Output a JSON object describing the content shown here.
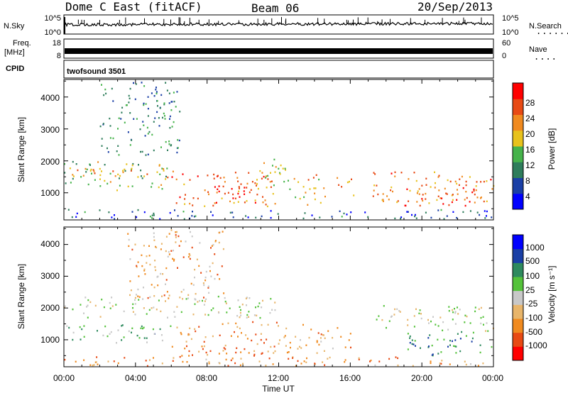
{
  "header": {
    "title": "Dome C East (fitACF)",
    "beam": "Beam 06",
    "date": "20/Sep/2013"
  },
  "meta_panels": {
    "nsky_label": "N.Sky",
    "nsky_ticks": [
      "10^5",
      "10^0"
    ],
    "nsearch_label": "N.Search",
    "nsearch_ticks": [
      "10^5",
      "10^0"
    ],
    "nsearch_marker": ".......",
    "freq_label_1": "Freq.",
    "freq_label_2": "[MHz]",
    "freq_ticks": [
      "18",
      "8"
    ],
    "nave_label": "Nave",
    "nave_ticks": [
      "60",
      "0"
    ],
    "nave_marker": "....",
    "cpid_label": "CPID",
    "cpid_value": "twofsound 3501"
  },
  "colors": {
    "power_scale": [
      "#0000ff",
      "#1a3fa6",
      "#2e7d5b",
      "#46b34b",
      "#e8c21c",
      "#f08a1f",
      "#e84a14",
      "#ff0000"
    ],
    "velocity_scale": [
      "#ff0000",
      "#e84a14",
      "#f08a1f",
      "#e8b56a",
      "#c8c8c8",
      "#54c23a",
      "#2e8a5e",
      "#1a3fa6",
      "#0000ff"
    ],
    "ground_scatter": "#b4b4b4"
  },
  "chart_data": [
    {
      "type": "heatmap",
      "name": "power",
      "ylabel": "Slant Range [km]",
      "xlabel": "",
      "xlim": [
        0,
        24
      ],
      "ylim": [
        150,
        4550
      ],
      "yticks": [
        "1000",
        "2000",
        "3000",
        "4000"
      ],
      "xticks": [
        "00:00",
        "04:00",
        "08:00",
        "12:00",
        "16:00",
        "20:00",
        "00:00"
      ],
      "colorbar": {
        "label": "Power [dB]",
        "ticks": [
          "4",
          "8",
          "12",
          "16",
          "20",
          "24",
          "28"
        ],
        "range": [
          0,
          32
        ]
      },
      "regions": [
        {
          "t": [
            0.0,
            6.0
          ],
          "r": [
            1100,
            2000
          ],
          "level": 3.2
        },
        {
          "t": [
            0.3,
            6.0
          ],
          "r": [
            1500,
            1800
          ],
          "level": 4.8
        },
        {
          "t": [
            6.0,
            11.8
          ],
          "r": [
            600,
            1700
          ],
          "level": 5.6
        },
        {
          "t": [
            8.0,
            10.5
          ],
          "r": [
            700,
            1300
          ],
          "level": 6.6
        },
        {
          "t": [
            10.5,
            12.6
          ],
          "r": [
            1100,
            2100
          ],
          "level": 4.0
        },
        {
          "t": [
            12.8,
            14.6
          ],
          "r": [
            600,
            1600
          ],
          "level": 4.6
        },
        {
          "t": [
            15.2,
            16.2
          ],
          "r": [
            900,
            1500
          ],
          "level": 5.4
        },
        {
          "t": [
            17.2,
            24.0
          ],
          "r": [
            700,
            1700
          ],
          "level": 5.2
        },
        {
          "t": [
            19.0,
            23.0
          ],
          "r": [
            600,
            1200
          ],
          "level": 6.4
        },
        {
          "t": [
            2.0,
            6.5
          ],
          "r": [
            2200,
            4500
          ],
          "level": 2.0
        },
        {
          "t": [
            0.0,
            24.0
          ],
          "r": [
            200,
            500
          ],
          "level": 1.2
        }
      ]
    },
    {
      "type": "heatmap",
      "name": "velocity",
      "ylabel": "Slant Range [km]",
      "xlabel": "Time UT",
      "xlim": [
        0,
        24
      ],
      "ylim": [
        150,
        4550
      ],
      "yticks": [
        "1000",
        "2000",
        "3000",
        "4000"
      ],
      "xticks": [
        "00:00",
        "04:00",
        "08:00",
        "12:00",
        "16:00",
        "20:00",
        "00:00"
      ],
      "colorbar": {
        "label": "Velocity [m s⁻¹]",
        "ticks": [
          "1000",
          "500",
          "100",
          "25",
          "-25",
          "-100",
          "-500",
          "-1000"
        ],
        "range": [
          -1000,
          1000
        ]
      },
      "regions": [
        {
          "t": [
            0.0,
            12.0
          ],
          "r": [
            1700,
            2400
          ],
          "level": 4.0
        },
        {
          "t": [
            0.0,
            6.0
          ],
          "r": [
            900,
            1500
          ],
          "level": 5.2
        },
        {
          "t": [
            6.0,
            12.2
          ],
          "r": [
            500,
            1600
          ],
          "level": 2.0
        },
        {
          "t": [
            12.2,
            16.0
          ],
          "r": [
            600,
            1500
          ],
          "level": 2.4
        },
        {
          "t": [
            17.2,
            24.0
          ],
          "r": [
            1300,
            2100
          ],
          "level": 4.0
        },
        {
          "t": [
            19.0,
            24.0
          ],
          "r": [
            500,
            1300
          ],
          "level": 6.0
        },
        {
          "t": [
            3.5,
            9.0
          ],
          "r": [
            2300,
            4500
          ],
          "level": 2.6
        },
        {
          "t": [
            0.0,
            24.0
          ],
          "r": [
            200,
            500
          ],
          "level": 2.2
        }
      ]
    }
  ]
}
